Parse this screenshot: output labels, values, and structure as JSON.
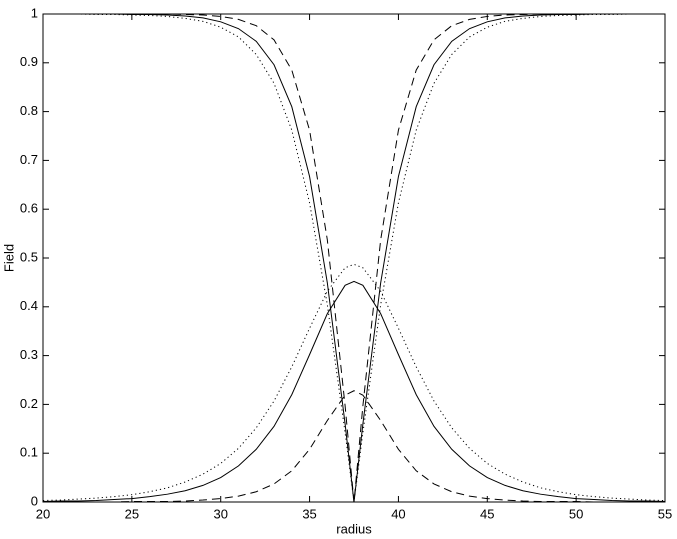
{
  "chart_data": {
    "type": "line",
    "xlabel": "radius",
    "ylabel": "Field",
    "x": [
      20,
      21,
      22,
      23,
      24,
      25,
      26,
      27,
      28,
      29,
      30,
      31,
      32,
      33,
      34,
      35,
      36,
      37,
      37.5,
      38,
      39,
      40,
      41,
      42,
      43,
      44,
      45,
      46,
      47,
      48,
      49,
      50,
      51,
      52,
      53,
      54,
      55
    ],
    "xlim": [
      20,
      55
    ],
    "xticks": [
      20,
      25,
      30,
      35,
      40,
      45,
      50,
      55
    ],
    "ylim": [
      0,
      1
    ],
    "yticks": [
      0,
      0.1,
      0.2,
      0.3,
      0.4,
      0.5,
      0.6,
      0.7,
      0.8,
      0.9,
      1
    ],
    "grid": false,
    "series": [
      {
        "color": "#000000",
        "dash": "solid",
        "values": [
          1,
          1,
          1,
          1,
          1,
          0.999,
          0.999,
          0.998,
          0.996,
          0.992,
          0.984,
          0.97,
          0.944,
          0.896,
          0.81,
          0.667,
          0.449,
          0.16,
          0,
          0.16,
          0.449,
          0.667,
          0.81,
          0.896,
          0.944,
          0.97,
          0.984,
          0.992,
          0.996,
          0.998,
          0.999,
          0.999,
          1,
          1,
          1,
          1,
          1
        ]
      },
      {
        "color": "#000000",
        "dash": "dashed",
        "values": [
          1,
          1,
          1,
          1,
          1,
          1,
          1,
          1,
          0.999,
          0.998,
          0.995,
          0.989,
          0.976,
          0.947,
          0.885,
          0.762,
          0.537,
          0.197,
          0,
          0.197,
          0.537,
          0.762,
          0.885,
          0.947,
          0.976,
          0.989,
          0.995,
          0.998,
          0.999,
          1,
          1,
          1,
          1,
          1,
          1,
          1,
          1
        ]
      },
      {
        "color": "#000000",
        "dash": "dotted",
        "values": [
          1,
          1,
          1,
          0.999,
          0.999,
          0.998,
          0.997,
          0.995,
          0.991,
          0.985,
          0.973,
          0.953,
          0.917,
          0.858,
          0.762,
          0.613,
          0.404,
          0.142,
          0,
          0.142,
          0.404,
          0.613,
          0.762,
          0.858,
          0.917,
          0.953,
          0.973,
          0.985,
          0.991,
          0.995,
          0.997,
          0.998,
          0.999,
          0.999,
          1,
          1,
          1
        ]
      },
      {
        "color": "#000000",
        "dash": "solid",
        "values": [
          0.001,
          0.002,
          0.002,
          0.003,
          0.005,
          0.007,
          0.011,
          0.016,
          0.023,
          0.034,
          0.05,
          0.074,
          0.108,
          0.155,
          0.22,
          0.302,
          0.386,
          0.444,
          0.452,
          0.444,
          0.386,
          0.302,
          0.22,
          0.155,
          0.108,
          0.074,
          0.05,
          0.034,
          0.023,
          0.016,
          0.011,
          0.007,
          0.005,
          0.003,
          0.002,
          0.002,
          0.001
        ]
      },
      {
        "color": "#000000",
        "dash": "dotted",
        "values": [
          0.003,
          0.004,
          0.006,
          0.008,
          0.011,
          0.015,
          0.021,
          0.029,
          0.041,
          0.057,
          0.079,
          0.11,
          0.152,
          0.207,
          0.277,
          0.356,
          0.432,
          0.48,
          0.487,
          0.48,
          0.432,
          0.356,
          0.277,
          0.207,
          0.152,
          0.11,
          0.079,
          0.057,
          0.041,
          0.029,
          0.021,
          0.015,
          0.011,
          0.008,
          0.006,
          0.004,
          0.003
        ]
      },
      {
        "color": "#000000",
        "dash": "dashed",
        "values": [
          0,
          0,
          0,
          0,
          0,
          0.001,
          0.001,
          0.001,
          0.002,
          0.004,
          0.007,
          0.012,
          0.021,
          0.037,
          0.064,
          0.108,
          0.167,
          0.219,
          0.228,
          0.219,
          0.167,
          0.108,
          0.064,
          0.037,
          0.021,
          0.012,
          0.007,
          0.004,
          0.002,
          0.001,
          0.001,
          0.001,
          0,
          0,
          0,
          0,
          0
        ]
      }
    ]
  }
}
